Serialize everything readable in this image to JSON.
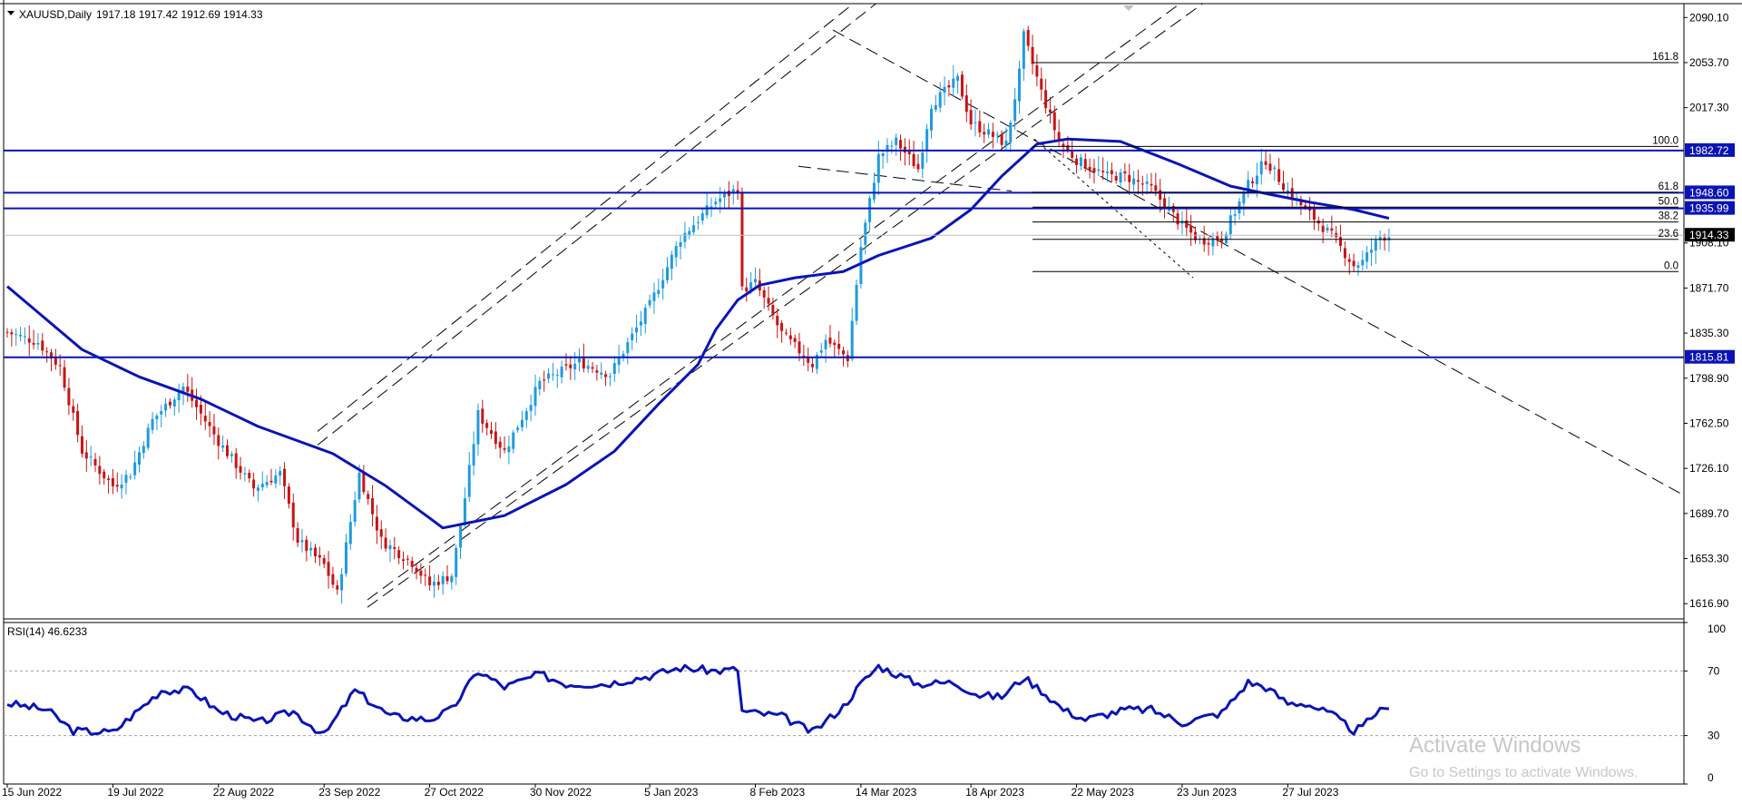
{
  "header": {
    "symbol": "XAUUSD,Daily",
    "ohlc": "1917.18 1917.42 1912.69 1914.33",
    "menu_icon": "triangle-down-icon"
  },
  "rsi": {
    "label": "RSI(14) 46.6233",
    "levels": [
      "100",
      "70",
      "30",
      "0"
    ]
  },
  "watermark": {
    "line1": "Activate Windows",
    "line2": "Go to Settings to activate Windows."
  },
  "colors": {
    "candle_up": "#1e9be0",
    "candle_down": "#c81414",
    "ma": "#0a14b4",
    "rsi": "#0a14b4",
    "hline": "#0a14b4",
    "badge": "#0a14b4",
    "price_badge": "#000000"
  },
  "chart_data": [
    {
      "type": "candlestick",
      "symbol": "XAUUSD",
      "timeframe": "Daily",
      "x_ticks": [
        "15 Jun 2022",
        "19 Jul 2022",
        "22 Aug 2022",
        "23 Sep 2022",
        "27 Oct 2022",
        "30 Nov 2022",
        "5 Jan 2023",
        "8 Feb 2023",
        "14 Mar 2023",
        "18 Apr 2023",
        "22 May 2023",
        "23 Jun 2023",
        "27 Jul 2023"
      ],
      "y_ticks": [
        "2090.10",
        "2053.70",
        "2017.30",
        "1908.10",
        "1871.70",
        "1835.30",
        "1798.90",
        "1762.50",
        "1726.10",
        "1689.70",
        "1653.30",
        "1616.90"
      ],
      "ylim": [
        1604.6,
        2101.3
      ],
      "last_price": "1914.33",
      "horizontal_levels": [
        "1982.72",
        "1948.60",
        "1935.99",
        "1815.81"
      ],
      "fibonacci_levels": [
        {
          "label": "161.8",
          "price": 2053.7
        },
        {
          "label": "100.0",
          "price": 1986.0
        },
        {
          "label": "61.8",
          "price": 1949.0
        },
        {
          "label": "50.0",
          "price": 1937.0
        },
        {
          "label": "38.2",
          "price": 1925.0
        },
        {
          "label": "23.6",
          "price": 1911.0
        },
        {
          "label": "0.0",
          "price": 1885.0
        }
      ],
      "price_path": [
        {
          "date": "2022-06-15",
          "price": 1836
        },
        {
          "date": "2022-06-24",
          "price": 1828
        },
        {
          "date": "2022-07-01",
          "price": 1808
        },
        {
          "date": "2022-07-08",
          "price": 1740
        },
        {
          "date": "2022-07-19",
          "price": 1712
        },
        {
          "date": "2022-07-25",
          "price": 1722
        },
        {
          "date": "2022-08-01",
          "price": 1765
        },
        {
          "date": "2022-08-10",
          "price": 1792
        },
        {
          "date": "2022-08-22",
          "price": 1748
        },
        {
          "date": "2022-09-01",
          "price": 1710
        },
        {
          "date": "2022-09-09",
          "price": 1722
        },
        {
          "date": "2022-09-15",
          "price": 1668
        },
        {
          "date": "2022-09-23",
          "price": 1648
        },
        {
          "date": "2022-09-28",
          "price": 1625
        },
        {
          "date": "2022-10-05",
          "price": 1722
        },
        {
          "date": "2022-10-12",
          "price": 1668
        },
        {
          "date": "2022-10-21",
          "price": 1650
        },
        {
          "date": "2022-10-27",
          "price": 1632
        },
        {
          "date": "2022-11-03",
          "price": 1640
        },
        {
          "date": "2022-11-07",
          "price": 1680
        },
        {
          "date": "2022-11-11",
          "price": 1770
        },
        {
          "date": "2022-11-21",
          "price": 1740
        },
        {
          "date": "2022-12-01",
          "price": 1795
        },
        {
          "date": "2022-12-14",
          "price": 1812
        },
        {
          "date": "2022-12-23",
          "price": 1802
        },
        {
          "date": "2023-01-05",
          "price": 1858
        },
        {
          "date": "2023-01-16",
          "price": 1912
        },
        {
          "date": "2023-01-26",
          "price": 1942
        },
        {
          "date": "2023-02-02",
          "price": 1952
        },
        {
          "date": "2023-02-03",
          "price": 1870
        },
        {
          "date": "2023-02-08",
          "price": 1876
        },
        {
          "date": "2023-02-16",
          "price": 1835
        },
        {
          "date": "2023-02-27",
          "price": 1810
        },
        {
          "date": "2023-03-02",
          "price": 1830
        },
        {
          "date": "2023-03-09",
          "price": 1815
        },
        {
          "date": "2023-03-14",
          "price": 1905
        },
        {
          "date": "2023-03-20",
          "price": 1978
        },
        {
          "date": "2023-03-24",
          "price": 1990
        },
        {
          "date": "2023-03-31",
          "price": 1968
        },
        {
          "date": "2023-04-05",
          "price": 2020
        },
        {
          "date": "2023-04-13",
          "price": 2040
        },
        {
          "date": "2023-04-18",
          "price": 2005
        },
        {
          "date": "2023-04-28",
          "price": 1988
        },
        {
          "date": "2023-05-03",
          "price": 2045
        },
        {
          "date": "2023-05-04",
          "price": 2075
        },
        {
          "date": "2023-05-10",
          "price": 2030
        },
        {
          "date": "2023-05-16",
          "price": 1990
        },
        {
          "date": "2023-05-22",
          "price": 1975
        },
        {
          "date": "2023-05-31",
          "price": 1962
        },
        {
          "date": "2023-06-06",
          "price": 1962
        },
        {
          "date": "2023-06-14",
          "price": 1952
        },
        {
          "date": "2023-06-23",
          "price": 1922
        },
        {
          "date": "2023-06-29",
          "price": 1910
        },
        {
          "date": "2023-07-06",
          "price": 1912
        },
        {
          "date": "2023-07-14",
          "price": 1955
        },
        {
          "date": "2023-07-20",
          "price": 1975
        },
        {
          "date": "2023-07-27",
          "price": 1950
        },
        {
          "date": "2023-08-02",
          "price": 1935
        },
        {
          "date": "2023-08-10",
          "price": 1914
        },
        {
          "date": "2023-08-17",
          "price": 1890
        },
        {
          "date": "2023-08-21",
          "price": 1893
        },
        {
          "date": "2023-08-25",
          "price": 1913
        },
        {
          "date": "2023-08-29",
          "price": 1914
        }
      ],
      "moving_average": [
        {
          "date": "2022-06-15",
          "price": 1873
        },
        {
          "date": "2022-07-08",
          "price": 1822
        },
        {
          "date": "2022-07-27",
          "price": 1800
        },
        {
          "date": "2022-08-16",
          "price": 1782
        },
        {
          "date": "2022-09-02",
          "price": 1760
        },
        {
          "date": "2022-09-27",
          "price": 1738
        },
        {
          "date": "2022-10-13",
          "price": 1712
        },
        {
          "date": "2022-10-27",
          "price": 1686
        },
        {
          "date": "2022-11-01",
          "price": 1678
        },
        {
          "date": "2022-11-21",
          "price": 1688
        },
        {
          "date": "2022-12-09",
          "price": 1713
        },
        {
          "date": "2022-12-26",
          "price": 1740
        },
        {
          "date": "2023-01-09",
          "price": 1778
        },
        {
          "date": "2023-01-20",
          "price": 1810
        },
        {
          "date": "2023-01-26",
          "price": 1838
        },
        {
          "date": "2023-02-02",
          "price": 1862
        },
        {
          "date": "2023-02-09",
          "price": 1874
        },
        {
          "date": "2023-02-21",
          "price": 1880
        },
        {
          "date": "2023-03-08",
          "price": 1885
        },
        {
          "date": "2023-03-20",
          "price": 1898
        },
        {
          "date": "2023-04-05",
          "price": 1912
        },
        {
          "date": "2023-04-18",
          "price": 1935
        },
        {
          "date": "2023-04-27",
          "price": 1962
        },
        {
          "date": "2023-05-09",
          "price": 1988
        },
        {
          "date": "2023-05-18",
          "price": 1992
        },
        {
          "date": "2023-06-05",
          "price": 1990
        },
        {
          "date": "2023-06-22",
          "price": 1972
        },
        {
          "date": "2023-07-10",
          "price": 1954
        },
        {
          "date": "2023-07-20",
          "price": 1948
        },
        {
          "date": "2023-08-03",
          "price": 1941
        },
        {
          "date": "2023-08-17",
          "price": 1935
        },
        {
          "date": "2023-08-29",
          "price": 1928
        }
      ]
    },
    {
      "type": "line",
      "name": "RSI(14)",
      "last_value": 46.6233,
      "ylim": [
        0,
        100
      ],
      "y_ticks": [
        "100",
        "70",
        "30",
        "0"
      ],
      "levels": [
        70,
        30
      ],
      "points": [
        {
          "date": "2022-06-15",
          "value": 50
        },
        {
          "date": "2022-06-28",
          "value": 46
        },
        {
          "date": "2022-07-06",
          "value": 33
        },
        {
          "date": "2022-07-19",
          "value": 32
        },
        {
          "date": "2022-08-03",
          "value": 58
        },
        {
          "date": "2022-08-12",
          "value": 58
        },
        {
          "date": "2022-08-22",
          "value": 45
        },
        {
          "date": "2022-09-02",
          "value": 38
        },
        {
          "date": "2022-09-14",
          "value": 45
        },
        {
          "date": "2022-09-23",
          "value": 30
        },
        {
          "date": "2022-10-04",
          "value": 58
        },
        {
          "date": "2022-10-14",
          "value": 42
        },
        {
          "date": "2022-10-27",
          "value": 40
        },
        {
          "date": "2022-11-03",
          "value": 46
        },
        {
          "date": "2022-11-11",
          "value": 70
        },
        {
          "date": "2022-11-21",
          "value": 60
        },
        {
          "date": "2022-12-01",
          "value": 68
        },
        {
          "date": "2022-12-09",
          "value": 62
        },
        {
          "date": "2022-12-22",
          "value": 62
        },
        {
          "date": "2023-01-05",
          "value": 67
        },
        {
          "date": "2023-01-16",
          "value": 72
        },
        {
          "date": "2023-01-26",
          "value": 70
        },
        {
          "date": "2023-02-02",
          "value": 71
        },
        {
          "date": "2023-02-05",
          "value": 45
        },
        {
          "date": "2023-02-16",
          "value": 42
        },
        {
          "date": "2023-02-27",
          "value": 32
        },
        {
          "date": "2023-03-08",
          "value": 48
        },
        {
          "date": "2023-03-14",
          "value": 62
        },
        {
          "date": "2023-03-20",
          "value": 73
        },
        {
          "date": "2023-03-31",
          "value": 62
        },
        {
          "date": "2023-04-12",
          "value": 63
        },
        {
          "date": "2023-04-20",
          "value": 55
        },
        {
          "date": "2023-04-27",
          "value": 54
        },
        {
          "date": "2023-05-04",
          "value": 66
        },
        {
          "date": "2023-05-10",
          "value": 58
        },
        {
          "date": "2023-05-17",
          "value": 46
        },
        {
          "date": "2023-05-24",
          "value": 40
        },
        {
          "date": "2023-06-06",
          "value": 46
        },
        {
          "date": "2023-06-14",
          "value": 46
        },
        {
          "date": "2023-06-23",
          "value": 38
        },
        {
          "date": "2023-07-06",
          "value": 44
        },
        {
          "date": "2023-07-14",
          "value": 63
        },
        {
          "date": "2023-07-20",
          "value": 60
        },
        {
          "date": "2023-07-27",
          "value": 50
        },
        {
          "date": "2023-08-02",
          "value": 50
        },
        {
          "date": "2023-08-10",
          "value": 43
        },
        {
          "date": "2023-08-17",
          "value": 33
        },
        {
          "date": "2023-08-21",
          "value": 35
        },
        {
          "date": "2023-08-25",
          "value": 47
        },
        {
          "date": "2023-08-29",
          "value": 46.6
        }
      ]
    }
  ]
}
